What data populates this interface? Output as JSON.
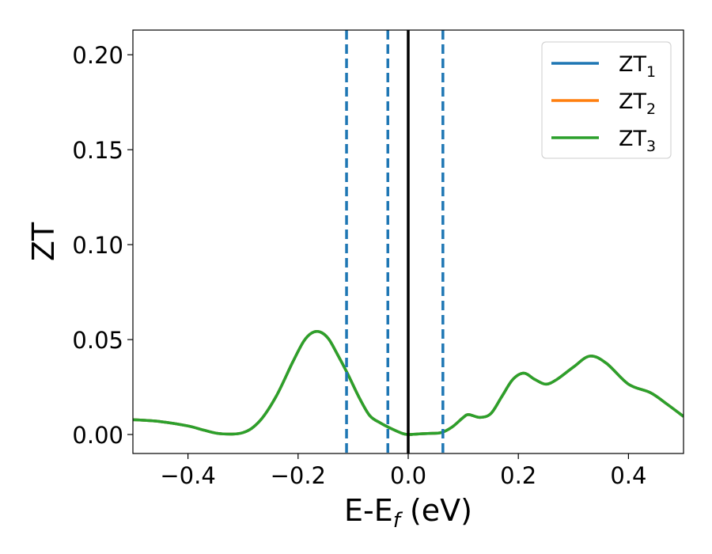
{
  "chart_data": {
    "type": "line",
    "title": "",
    "xlabel": {
      "main": "E-E",
      "sub": "f",
      "unit": " (eV)"
    },
    "ylabel": "ZT",
    "xlim": [
      -0.5,
      0.5
    ],
    "ylim": [
      -0.01,
      0.213
    ],
    "xticks": [
      -0.4,
      -0.2,
      0.0,
      0.2,
      0.4
    ],
    "xtick_labels": [
      "−0.4",
      "−0.2",
      "0.0",
      "0.2",
      "0.4"
    ],
    "yticks": [
      0.0,
      0.05,
      0.1,
      0.15,
      0.2
    ],
    "ytick_labels": [
      "0.00",
      "0.05",
      "0.10",
      "0.15",
      "0.20"
    ],
    "grid": false,
    "legend_position": "top-right",
    "legend": [
      {
        "base": "ZT",
        "sub": "1",
        "color": "#1f77b4"
      },
      {
        "base": "ZT",
        "sub": "2",
        "color": "#ff7f0e"
      },
      {
        "base": "ZT",
        "sub": "3",
        "color": "#2ca02c"
      }
    ],
    "x": [
      -0.5,
      -0.45,
      -0.4,
      -0.37,
      -0.34,
      -0.3,
      -0.27,
      -0.24,
      -0.21,
      -0.19,
      -0.175,
      -0.16,
      -0.145,
      -0.13,
      -0.11,
      -0.09,
      -0.07,
      -0.05,
      -0.03,
      -0.01,
      0.0,
      0.02,
      0.04,
      0.06,
      0.08,
      0.1,
      0.11,
      0.13,
      0.15,
      0.17,
      0.19,
      0.21,
      0.23,
      0.25,
      0.27,
      0.3,
      0.33,
      0.36,
      0.4,
      0.44,
      0.47,
      0.5
    ],
    "series": [
      {
        "name": "ZT₁",
        "color": "#1f77b4",
        "values": [
          0.0078,
          0.0068,
          0.0045,
          0.0022,
          0.0004,
          0.001,
          0.007,
          0.02,
          0.038,
          0.049,
          0.0535,
          0.054,
          0.0505,
          0.043,
          0.032,
          0.02,
          0.01,
          0.006,
          0.003,
          0.0005,
          0.0,
          0.0003,
          0.0006,
          0.001,
          0.004,
          0.009,
          0.0105,
          0.009,
          0.011,
          0.02,
          0.029,
          0.0323,
          0.029,
          0.0265,
          0.029,
          0.0355,
          0.0413,
          0.0375,
          0.0265,
          0.022,
          0.016,
          0.0095
        ]
      },
      {
        "name": "ZT₂",
        "color": "#ff7f0e",
        "values": [
          0.0078,
          0.0068,
          0.0045,
          0.0022,
          0.0004,
          0.001,
          0.007,
          0.02,
          0.038,
          0.049,
          0.0535,
          0.054,
          0.0505,
          0.043,
          0.032,
          0.02,
          0.01,
          0.006,
          0.003,
          0.0005,
          0.0,
          0.0003,
          0.0006,
          0.001,
          0.004,
          0.009,
          0.0105,
          0.009,
          0.011,
          0.02,
          0.029,
          0.0323,
          0.029,
          0.0265,
          0.029,
          0.0355,
          0.0413,
          0.0375,
          0.0265,
          0.022,
          0.016,
          0.0095
        ]
      },
      {
        "name": "ZT₃",
        "color": "#2ca02c",
        "values": [
          0.0078,
          0.0068,
          0.0045,
          0.0022,
          0.0004,
          0.001,
          0.007,
          0.02,
          0.038,
          0.049,
          0.0535,
          0.054,
          0.0505,
          0.043,
          0.032,
          0.02,
          0.01,
          0.006,
          0.003,
          0.0005,
          0.0,
          0.0003,
          0.0006,
          0.001,
          0.004,
          0.009,
          0.0105,
          0.009,
          0.011,
          0.02,
          0.029,
          0.0323,
          0.029,
          0.0265,
          0.029,
          0.0355,
          0.0413,
          0.0375,
          0.0265,
          0.022,
          0.016,
          0.0095
        ]
      }
    ],
    "vlines": [
      {
        "x": 0.0,
        "style": "solid",
        "color": "#000000"
      },
      {
        "x": -0.112,
        "style": "dashed",
        "color": "#1f77b4"
      },
      {
        "x": -0.037,
        "style": "dashed",
        "color": "#1f77b4"
      },
      {
        "x": 0.063,
        "style": "dashed",
        "color": "#1f77b4"
      }
    ]
  }
}
